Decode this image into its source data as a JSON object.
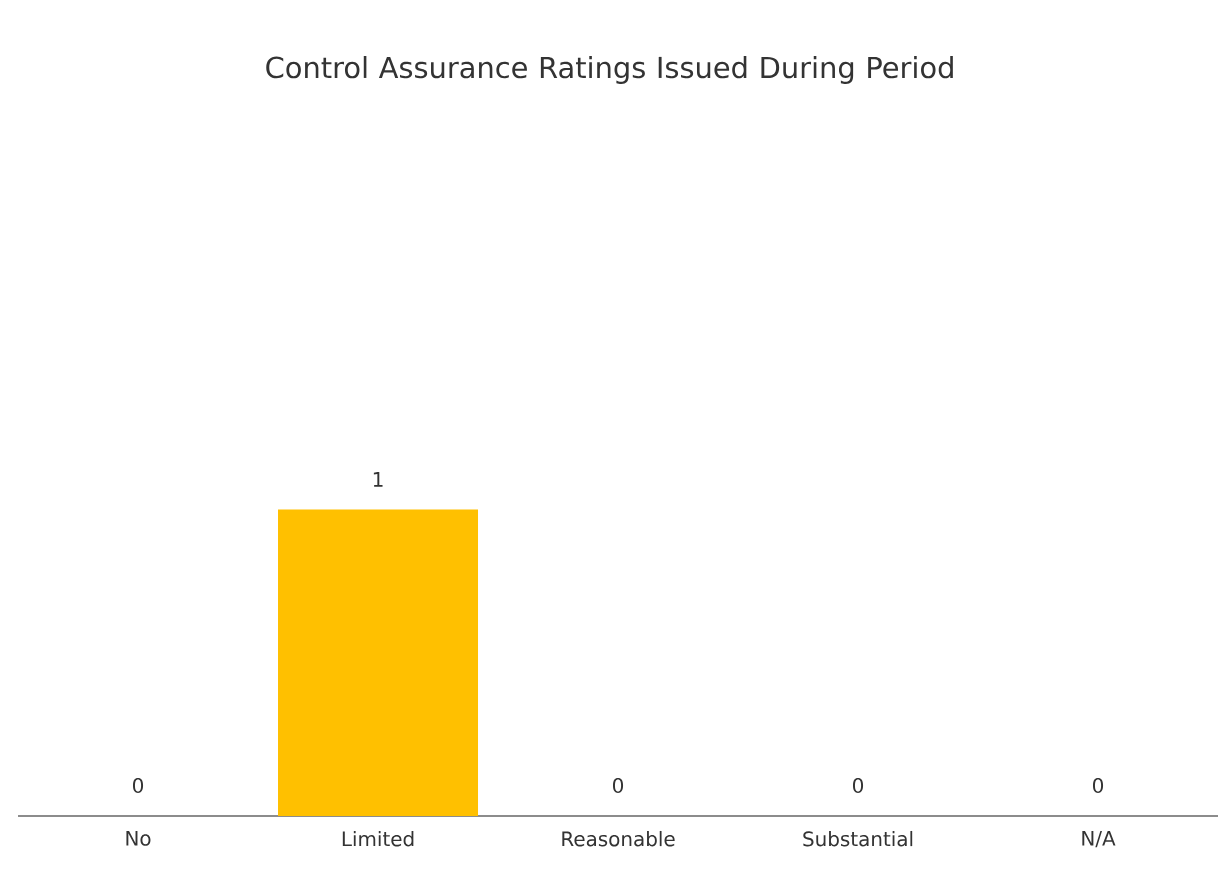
{
  "chart_data": {
    "type": "bar",
    "title": "Control Assurance Ratings Issued During Period",
    "categories": [
      "No",
      "Limited",
      "Reasonable",
      "Substantial",
      "N/A"
    ],
    "values": [
      0,
      1,
      0,
      0,
      0
    ],
    "color": "#ffc000",
    "data_labels": true
  }
}
